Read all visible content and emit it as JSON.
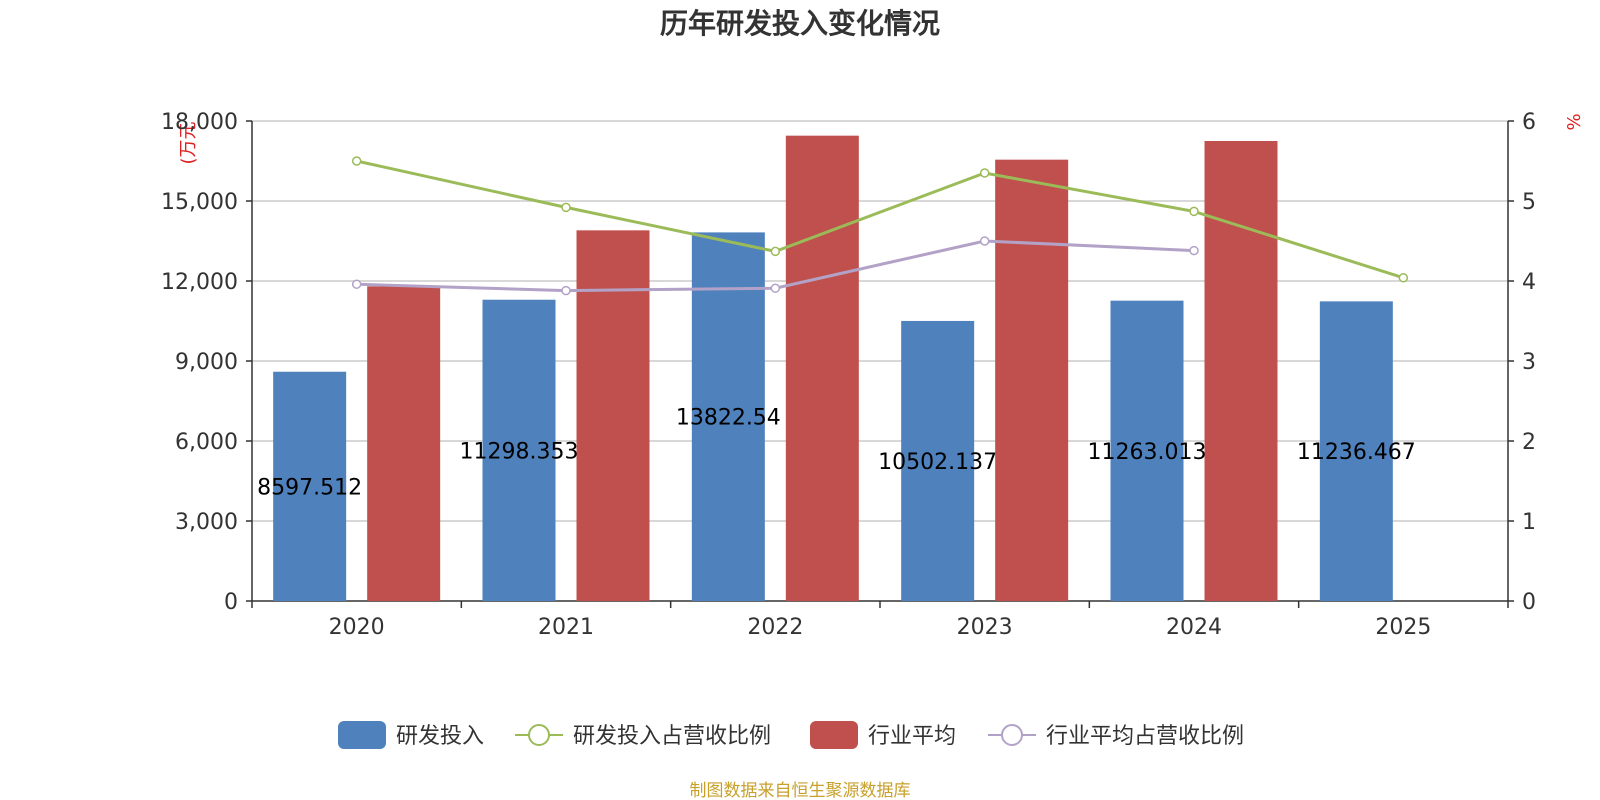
{
  "chart_data": {
    "type": "bar",
    "title": "历年研发投入变化情况",
    "left_unit": "(万元",
    "right_unit": "%",
    "categories": [
      "2020",
      "2021",
      "2022",
      "2023",
      "2024",
      "2025"
    ],
    "y_left": {
      "min": 0,
      "max": 18000,
      "ticks": [
        "0",
        "3,000",
        "6,000",
        "9,000",
        "12,000",
        "15,000",
        "18,000"
      ]
    },
    "y_right": {
      "min": 0,
      "max": 6,
      "ticks": [
        "0",
        "1",
        "2",
        "3",
        "4",
        "5",
        "6"
      ]
    },
    "grid": true,
    "legend_position": "bottom",
    "series": [
      {
        "name": "研发投入",
        "type": "bar",
        "axis": "left",
        "color": "#4f81bd",
        "values": [
          8597.512,
          11298.353,
          13822.54,
          10502.137,
          11263.013,
          11236.467
        ],
        "labels": [
          "8597.512",
          "11298.353",
          "13822.54",
          "10502.137",
          "11263.013",
          "11236.467"
        ]
      },
      {
        "name": "研发投入占营收比例",
        "type": "line",
        "axis": "right",
        "color": "#9bbb59",
        "values": [
          5.5,
          4.92,
          4.37,
          5.35,
          4.87,
          4.04
        ]
      },
      {
        "name": "行业平均",
        "type": "bar",
        "axis": "left",
        "color": "#c0504d",
        "values": [
          11800,
          13900,
          17450,
          16550,
          17250,
          null
        ]
      },
      {
        "name": "行业平均占营收比例",
        "type": "line",
        "axis": "right",
        "color": "#b3a2c7",
        "values": [
          3.96,
          3.88,
          3.91,
          4.5,
          4.38,
          null
        ]
      }
    ],
    "source": "制图数据来自恒生聚源数据库"
  }
}
